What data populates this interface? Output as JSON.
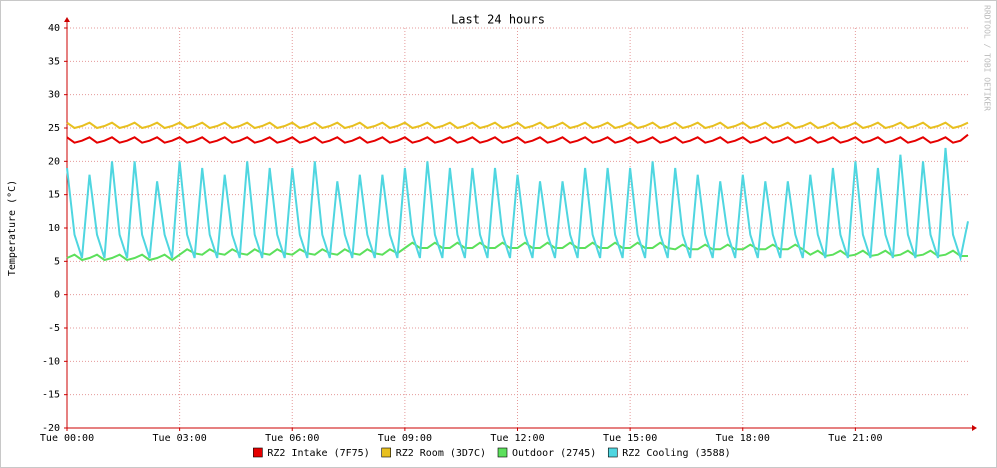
{
  "chart_data": {
    "type": "line",
    "title": "Last 24 hours",
    "ylabel": "Temperature (°C)",
    "watermark": "RRDTOOL / TOBI OETIKER",
    "x": [
      0,
      0.2,
      0.4,
      0.6,
      0.8,
      1,
      1.2,
      1.4,
      1.6,
      1.8,
      2,
      2.2,
      2.4,
      2.6,
      2.8,
      3,
      3.2,
      3.4,
      3.6,
      3.8,
      4,
      4.2,
      4.4,
      4.6,
      4.8,
      5,
      5.2,
      5.4,
      5.6,
      5.8,
      6,
      6.2,
      6.4,
      6.6,
      6.8,
      7,
      7.2,
      7.4,
      7.6,
      7.8,
      8,
      8.2,
      8.4,
      8.6,
      8.8,
      9,
      9.2,
      9.4,
      9.6,
      9.8,
      10,
      10.2,
      10.4,
      10.6,
      10.8,
      11,
      11.2,
      11.4,
      11.6,
      11.8,
      12,
      12.2,
      12.4,
      12.6,
      12.8,
      13,
      13.2,
      13.4,
      13.6,
      13.8,
      14,
      14.2,
      14.4,
      14.6,
      14.8,
      15,
      15.2,
      15.4,
      15.6,
      15.8,
      16,
      16.2,
      16.4,
      16.6,
      16.8,
      17,
      17.2,
      17.4,
      17.6,
      17.8,
      18,
      18.2,
      18.4,
      18.6,
      18.8,
      19,
      19.2,
      19.4,
      19.6,
      19.8,
      20,
      20.2,
      20.4,
      20.6,
      20.8,
      21,
      21.2,
      21.4,
      21.6,
      21.8,
      22,
      22.2,
      22.4,
      22.6,
      22.8,
      23,
      23.2,
      23.4,
      23.6,
      23.8,
      24
    ],
    "series": [
      {
        "name": "RZ2 Intake (7F75)",
        "color": "#e60000",
        "values": [
          23.6,
          22.8,
          23.1,
          23.6,
          22.8,
          23.1,
          23.6,
          22.8,
          23.1,
          23.6,
          22.8,
          23.1,
          23.6,
          22.8,
          23.1,
          23.6,
          22.8,
          23.1,
          23.6,
          22.8,
          23.1,
          23.6,
          22.8,
          23.1,
          23.6,
          22.8,
          23.1,
          23.6,
          22.8,
          23.1,
          23.6,
          22.8,
          23.1,
          23.6,
          22.8,
          23.1,
          23.6,
          22.8,
          23.1,
          23.6,
          22.8,
          23.1,
          23.6,
          22.8,
          23.1,
          23.6,
          22.8,
          23.1,
          23.6,
          22.8,
          23.1,
          23.6,
          22.8,
          23.1,
          23.6,
          22.8,
          23.1,
          23.6,
          22.8,
          23.1,
          23.6,
          22.8,
          23.1,
          23.6,
          22.8,
          23.1,
          23.6,
          22.8,
          23.1,
          23.6,
          22.8,
          23.1,
          23.6,
          22.8,
          23.1,
          23.6,
          22.8,
          23.1,
          23.6,
          22.8,
          23.1,
          23.6,
          22.8,
          23.1,
          23.6,
          22.8,
          23.1,
          23.6,
          22.8,
          23.1,
          23.6,
          22.8,
          23.1,
          23.6,
          22.8,
          23.1,
          23.6,
          22.8,
          23.1,
          23.6,
          22.8,
          23.1,
          23.6,
          22.8,
          23.1,
          23.6,
          22.8,
          23.1,
          23.6,
          22.8,
          23.1,
          23.6,
          22.8,
          23.1,
          23.6,
          22.8,
          23.1,
          23.6,
          22.8,
          23.1,
          24
        ]
      },
      {
        "name": "RZ2 Room (3D7C)",
        "color": "#e8c020",
        "values": [
          25.8,
          25,
          25.3,
          25.8,
          25,
          25.3,
          25.8,
          25,
          25.3,
          25.8,
          25,
          25.3,
          25.8,
          25,
          25.3,
          25.8,
          25,
          25.3,
          25.8,
          25,
          25.3,
          25.8,
          25,
          25.3,
          25.8,
          25,
          25.3,
          25.8,
          25,
          25.3,
          25.8,
          25,
          25.3,
          25.8,
          25,
          25.3,
          25.8,
          25,
          25.3,
          25.8,
          25,
          25.3,
          25.8,
          25,
          25.3,
          25.8,
          25,
          25.3,
          25.8,
          25,
          25.3,
          25.8,
          25,
          25.3,
          25.8,
          25,
          25.3,
          25.8,
          25,
          25.3,
          25.8,
          25,
          25.3,
          25.8,
          25,
          25.3,
          25.8,
          25,
          25.3,
          25.8,
          25,
          25.3,
          25.8,
          25,
          25.3,
          25.8,
          25,
          25.3,
          25.8,
          25,
          25.3,
          25.8,
          25,
          25.3,
          25.8,
          25,
          25.3,
          25.8,
          25,
          25.3,
          25.8,
          25,
          25.3,
          25.8,
          25,
          25.3,
          25.8,
          25,
          25.3,
          25.8,
          25,
          25.3,
          25.8,
          25,
          25.3,
          25.8,
          25,
          25.3,
          25.8,
          25,
          25.3,
          25.8,
          25,
          25.3,
          25.8,
          25,
          25.3,
          25.8,
          25,
          25.3,
          25.8
        ]
      },
      {
        "name": "Outdoor (2745)",
        "color": "#5ce05c",
        "values": [
          5.5,
          6,
          5.2,
          5.5,
          6,
          5.2,
          5.5,
          6,
          5.2,
          5.5,
          6,
          5.2,
          5.5,
          6,
          5.2,
          6,
          6.8,
          6.2,
          6,
          6.8,
          6.2,
          6,
          6.8,
          6.2,
          6,
          6.8,
          6.2,
          6,
          6.8,
          6.2,
          6,
          6.8,
          6.2,
          6,
          6.8,
          6.2,
          6,
          6.8,
          6.2,
          6,
          6.8,
          6.2,
          6,
          6.8,
          6.2,
          7,
          7.8,
          7,
          7,
          7.8,
          7,
          7,
          7.8,
          7,
          7,
          7.8,
          7,
          7,
          7.8,
          7,
          7,
          7.8,
          7,
          7,
          7.8,
          7,
          7,
          7.8,
          7,
          7,
          7.8,
          7,
          7,
          7.8,
          7,
          7,
          7.8,
          7,
          7,
          7.8,
          7,
          6.8,
          7.5,
          6.8,
          6.8,
          7.5,
          6.8,
          6.8,
          7.5,
          6.8,
          6.8,
          7.5,
          6.8,
          6.8,
          7.5,
          6.8,
          6.8,
          7.5,
          6.8,
          6,
          6.6,
          5.8,
          6,
          6.6,
          5.8,
          6,
          6.6,
          5.8,
          6,
          6.6,
          5.8,
          6,
          6.6,
          5.8,
          6,
          6.6,
          5.8,
          6,
          6.6,
          5.8,
          5.8
        ]
      },
      {
        "name": "RZ2 Cooling (3588)",
        "color": "#4fd6e0",
        "values": [
          19,
          9,
          5.5,
          18,
          9,
          5.5,
          20,
          9,
          5.5,
          20,
          9,
          5.5,
          17,
          9,
          5.5,
          20,
          9,
          5.5,
          19,
          9,
          5.5,
          18,
          9,
          5.5,
          20,
          9,
          5.5,
          19,
          9,
          5.5,
          19,
          9,
          5.5,
          20,
          9,
          5.5,
          17,
          9,
          5.5,
          18,
          9,
          5.5,
          18,
          9,
          5.5,
          19,
          9,
          5.5,
          20,
          9,
          5.5,
          19,
          9,
          5.5,
          19,
          9,
          5.5,
          19,
          9,
          5.5,
          18,
          9,
          5.5,
          17,
          9,
          5.5,
          17,
          9,
          5.5,
          19,
          9,
          5.5,
          19,
          9,
          5.5,
          19,
          9,
          5.5,
          20,
          9,
          5.5,
          19,
          9,
          5.5,
          18,
          9,
          5.5,
          17,
          9,
          5.5,
          18,
          9,
          5.5,
          17,
          9,
          5.5,
          17,
          9,
          5.5,
          18,
          9,
          5.5,
          19,
          9,
          5.5,
          20,
          9,
          5.5,
          19,
          9,
          5.5,
          21,
          9,
          5.5,
          20,
          9,
          5.5,
          22,
          9,
          5.5,
          11
        ]
      }
    ],
    "xlim": [
      0,
      24
    ],
    "xticks": [
      {
        "value": 0,
        "label": "Tue 00:00"
      },
      {
        "value": 3,
        "label": "Tue 03:00"
      },
      {
        "value": 6,
        "label": "Tue 06:00"
      },
      {
        "value": 9,
        "label": "Tue 09:00"
      },
      {
        "value": 12,
        "label": "Tue 12:00"
      },
      {
        "value": 15,
        "label": "Tue 15:00"
      },
      {
        "value": 18,
        "label": "Tue 18:00"
      },
      {
        "value": 21,
        "label": "Tue 21:00"
      }
    ],
    "ylim": [
      -20,
      40
    ],
    "yticks": [
      -20,
      -15,
      -10,
      -5,
      0,
      5,
      10,
      15,
      20,
      25,
      30,
      35,
      40
    ],
    "grid": true,
    "legend": "bottom"
  }
}
